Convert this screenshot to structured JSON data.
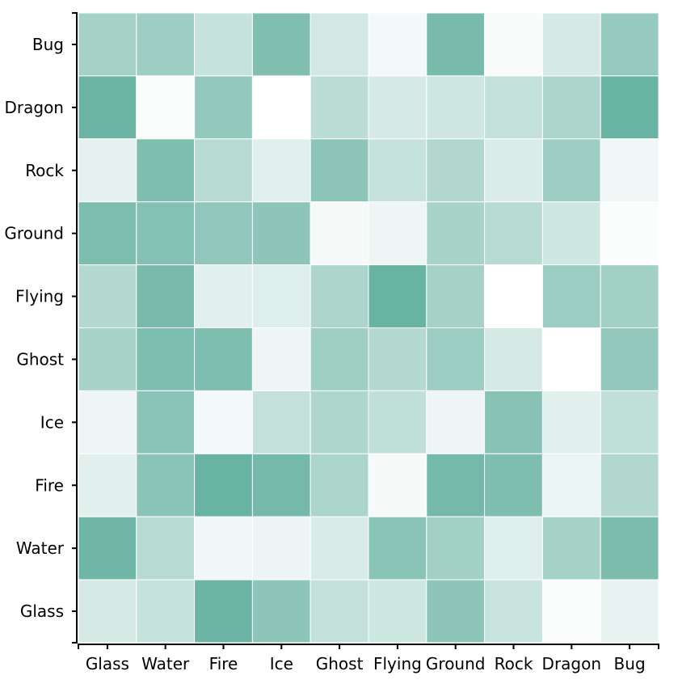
{
  "chart_data": {
    "type": "heatmap",
    "title": "",
    "xlabel": "",
    "ylabel": "",
    "x_categories": [
      "Glass",
      "Water",
      "Fire",
      "Ice",
      "Ghost",
      "Flying",
      "Ground",
      "Rock",
      "Dragon",
      "Bug"
    ],
    "y_categories": [
      "Bug",
      "Dragon",
      "Rock",
      "Ground",
      "Flying",
      "Ghost",
      "Ice",
      "Fire",
      "Water",
      "Glass"
    ],
    "color_scale": {
      "low": "#ffffff",
      "high": "#69b3a2"
    },
    "values": [
      [
        0.6,
        0.65,
        0.38,
        0.85,
        0.3,
        0.08,
        0.9,
        0.05,
        0.28,
        0.7
      ],
      [
        0.98,
        0.04,
        0.72,
        0.0,
        0.45,
        0.28,
        0.32,
        0.4,
        0.55,
        1.0
      ],
      [
        0.18,
        0.86,
        0.48,
        0.2,
        0.76,
        0.38,
        0.52,
        0.25,
        0.65,
        0.1
      ],
      [
        0.87,
        0.82,
        0.74,
        0.76,
        0.07,
        0.12,
        0.58,
        0.48,
        0.32,
        0.03
      ],
      [
        0.5,
        0.9,
        0.2,
        0.22,
        0.55,
        1.0,
        0.6,
        0.0,
        0.66,
        0.62
      ],
      [
        0.58,
        0.86,
        0.86,
        0.12,
        0.64,
        0.5,
        0.66,
        0.28,
        0.01,
        0.72
      ],
      [
        0.12,
        0.78,
        0.08,
        0.4,
        0.54,
        0.42,
        0.12,
        0.8,
        0.2,
        0.42
      ],
      [
        0.2,
        0.78,
        1.0,
        0.92,
        0.56,
        0.06,
        0.92,
        0.86,
        0.14,
        0.52
      ],
      [
        0.96,
        0.48,
        0.1,
        0.13,
        0.26,
        0.78,
        0.62,
        0.22,
        0.6,
        0.88
      ],
      [
        0.28,
        0.38,
        0.98,
        0.76,
        0.4,
        0.32,
        0.76,
        0.36,
        0.04,
        0.16
      ]
    ]
  }
}
